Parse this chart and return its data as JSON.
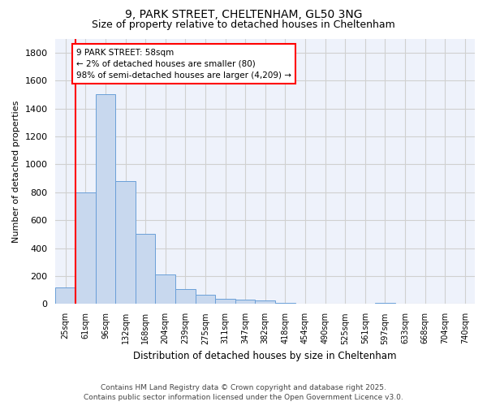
{
  "title1": "9, PARK STREET, CHELTENHAM, GL50 3NG",
  "title2": "Size of property relative to detached houses in Cheltenham",
  "xlabel": "Distribution of detached houses by size in Cheltenham",
  "ylabel": "Number of detached properties",
  "categories": [
    "25sqm",
    "61sqm",
    "96sqm",
    "132sqm",
    "168sqm",
    "204sqm",
    "239sqm",
    "275sqm",
    "311sqm",
    "347sqm",
    "382sqm",
    "418sqm",
    "454sqm",
    "490sqm",
    "525sqm",
    "561sqm",
    "597sqm",
    "633sqm",
    "668sqm",
    "704sqm",
    "740sqm"
  ],
  "values": [
    120,
    800,
    1500,
    880,
    500,
    210,
    110,
    65,
    40,
    30,
    25,
    10,
    0,
    0,
    0,
    0,
    10,
    0,
    0,
    0,
    0
  ],
  "bar_color": "#c8d8ee",
  "bar_edge_color": "#6a9fd8",
  "annotation_box_text": "9 PARK STREET: 58sqm\n← 2% of detached houses are smaller (80)\n98% of semi-detached houses are larger (4,209) →",
  "ylim": [
    0,
    1900
  ],
  "yticks": [
    0,
    200,
    400,
    600,
    800,
    1000,
    1200,
    1400,
    1600,
    1800
  ],
  "grid_color": "#d0d0d0",
  "footer_text": "Contains HM Land Registry data © Crown copyright and database right 2025.\nContains public sector information licensed under the Open Government Licence v3.0.",
  "bg_color": "#ffffff",
  "plot_bg_color": "#eef2fb"
}
